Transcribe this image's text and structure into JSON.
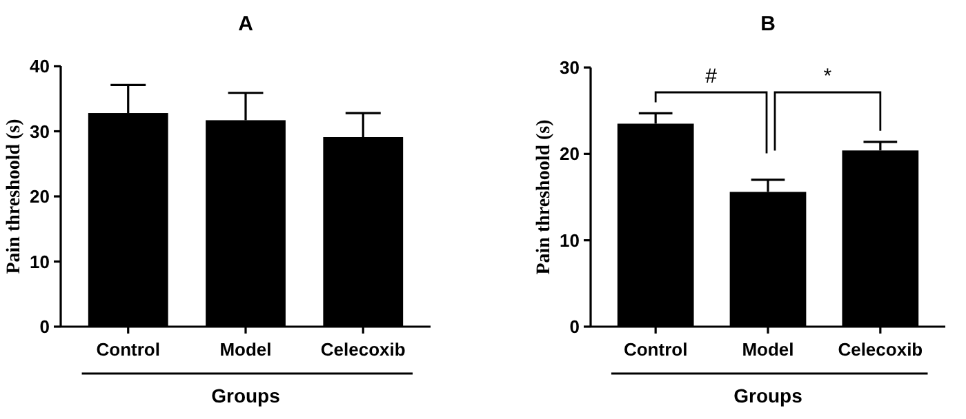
{
  "chart_data": [
    {
      "type": "bar",
      "title": "A",
      "xlabel": "Groups",
      "ylabel": "Pain threshoold (s)",
      "categories": [
        "Control",
        "Model",
        "Celecoxib"
      ],
      "values": [
        32.8,
        31.7,
        29.1
      ],
      "color": "#000000",
      "errors": [
        [
          32.8,
          37.1
        ],
        [
          31.7,
          35.9
        ],
        [
          29.1,
          32.8
        ]
      ],
      "ylim": [
        0,
        40
      ],
      "yticks": [
        0,
        10,
        20,
        30,
        40
      ],
      "grid": false
    },
    {
      "type": "bar",
      "title": "B",
      "xlabel": "Groups",
      "ylabel": "Pain threshoold (s)",
      "categories": [
        "Control",
        "Model",
        "Celecoxib"
      ],
      "values": [
        23.5,
        15.6,
        20.4
      ],
      "color": "#000000",
      "errors": [
        [
          23.5,
          24.7
        ],
        [
          15.6,
          17.0
        ],
        [
          20.4,
          21.4
        ]
      ],
      "ylim": [
        0,
        30
      ],
      "yticks": [
        0,
        10,
        20,
        30
      ],
      "grid": false,
      "annotations": [
        "#",
        "*"
      ]
    }
  ]
}
